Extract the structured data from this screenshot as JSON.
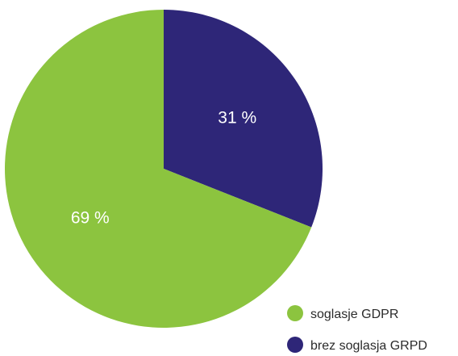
{
  "chart_data": {
    "type": "pie",
    "slices": [
      {
        "label": "brez soglasja GRPD",
        "value": 31,
        "display": "31 %",
        "color": "#2e2678"
      },
      {
        "label": "soglasje GDPR",
        "value": 69,
        "display": "69 %",
        "color": "#8cc43f"
      }
    ],
    "legend": [
      {
        "label": "soglasje GDPR",
        "color": "#8cc43f"
      },
      {
        "label": "brez soglasja GRPD",
        "color": "#2e2678"
      }
    ],
    "start_angle_deg": 0,
    "direction": "clockwise",
    "legend_position": "bottom-right"
  }
}
